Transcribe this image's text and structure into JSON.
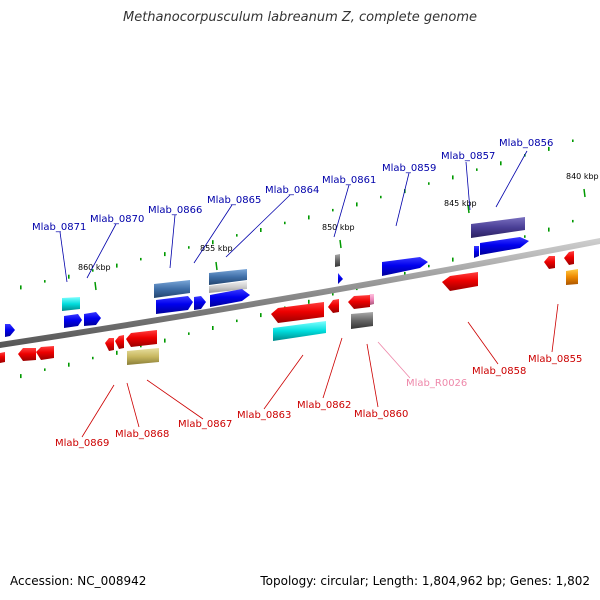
{
  "title": "Methanocorpusculum labreanum Z, complete genome",
  "footer": {
    "accession": "Accession: NC_008942",
    "summary": "Topology: circular; Length: 1,804,962 bp; Genes: 1,802"
  },
  "colors": {
    "forward_label": "#0000aa",
    "reverse_label": "#cc0000",
    "rna_label": "#ee88aa",
    "forward_gene": "#0000ee",
    "reverse_gene": "#ee0000",
    "backbone": "#888888",
    "tick": "#009900"
  },
  "scale_labels": [
    {
      "id": "k840",
      "text": "840 kbp"
    },
    {
      "id": "k845",
      "text": "845 kbp"
    },
    {
      "id": "k850",
      "text": "850 kbp"
    },
    {
      "id": "k855",
      "text": "855 kbp"
    },
    {
      "id": "k860",
      "text": "860 kbp"
    }
  ],
  "genes": [
    {
      "id": "Mlab_0856",
      "label": "Mlab_0856",
      "strand": "+"
    },
    {
      "id": "Mlab_0857",
      "label": "Mlab_0857",
      "strand": "+"
    },
    {
      "id": "Mlab_0859",
      "label": "Mlab_0859",
      "strand": "+"
    },
    {
      "id": "Mlab_0861",
      "label": "Mlab_0861",
      "strand": "+"
    },
    {
      "id": "Mlab_0864",
      "label": "Mlab_0864",
      "strand": "+"
    },
    {
      "id": "Mlab_0865",
      "label": "Mlab_0865",
      "strand": "+"
    },
    {
      "id": "Mlab_0866",
      "label": "Mlab_0866",
      "strand": "+"
    },
    {
      "id": "Mlab_0870",
      "label": "Mlab_0870",
      "strand": "+"
    },
    {
      "id": "Mlab_0871",
      "label": "Mlab_0871",
      "strand": "+"
    },
    {
      "id": "Mlab_0855",
      "label": "Mlab_0855",
      "strand": "-"
    },
    {
      "id": "Mlab_0858",
      "label": "Mlab_0858",
      "strand": "-"
    },
    {
      "id": "Mlab_R0026",
      "label": "Mlab_R0026",
      "strand": "-"
    },
    {
      "id": "Mlab_0860",
      "label": "Mlab_0860",
      "strand": "-"
    },
    {
      "id": "Mlab_0862",
      "label": "Mlab_0862",
      "strand": "-"
    },
    {
      "id": "Mlab_0863",
      "label": "Mlab_0863",
      "strand": "-"
    },
    {
      "id": "Mlab_0867",
      "label": "Mlab_0867",
      "strand": "-"
    },
    {
      "id": "Mlab_0868",
      "label": "Mlab_0868",
      "strand": "-"
    },
    {
      "id": "Mlab_0869",
      "label": "Mlab_0869",
      "strand": "-"
    }
  ]
}
